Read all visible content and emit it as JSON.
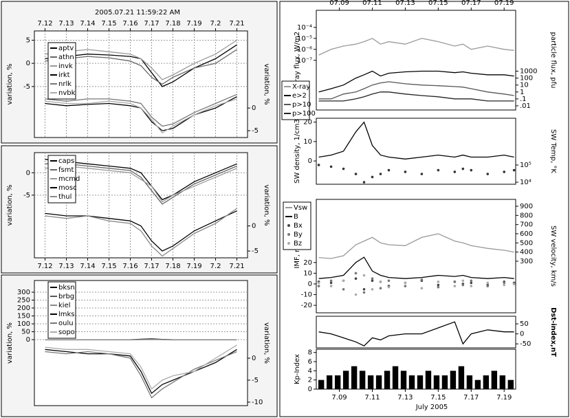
{
  "chart_data": [
    {
      "type": "line",
      "title": "2005.07.21 11:59:22 AM",
      "ylabel": "variation, %",
      "y2label": "variation, %",
      "grid": true,
      "legend": true,
      "xlim": [
        7.115,
        7.215
      ],
      "xticks": [
        7.12,
        7.13,
        7.14,
        7.15,
        7.16,
        7.17,
        7.18,
        7.19,
        7.2,
        7.21
      ],
      "ylim": [
        -16,
        7
      ],
      "yticks": [
        5,
        0,
        -5
      ],
      "y2lim": [
        -6.5,
        17
      ],
      "y2ticks": [
        0,
        -5
      ],
      "x": [
        7.12,
        7.13,
        7.14,
        7.15,
        7.16,
        7.165,
        7.17,
        7.175,
        7.18,
        7.19,
        7.2,
        7.21
      ],
      "series": [
        {
          "name": "aptv",
          "color": "#000",
          "values": [
            1,
            1.5,
            2,
            1.8,
            1.5,
            1,
            -2,
            -5,
            -4,
            -1,
            1,
            4
          ]
        },
        {
          "name": "athn",
          "color": "#666",
          "values": [
            0.5,
            1,
            1.5,
            1.2,
            0.5,
            -0.5,
            -3,
            -4.5,
            -3,
            -1,
            0,
            3
          ]
        },
        {
          "name": "invk",
          "color": "#999",
          "values": [
            2,
            2.5,
            3,
            2.5,
            2,
            1,
            -1,
            -3.5,
            -2.5,
            0,
            2,
            5
          ]
        },
        {
          "name": "irkt",
          "color": "#000",
          "axis": "y2",
          "values": [
            1,
            0.5,
            0.8,
            1,
            0.5,
            0,
            -3,
            -5,
            -4.5,
            -1.5,
            0,
            2.5
          ]
        },
        {
          "name": "nrlk",
          "color": "#777",
          "axis": "y2",
          "values": [
            2,
            1.5,
            2,
            2,
            1.5,
            1,
            -2,
            -4,
            -3.5,
            -1,
            1,
            3
          ]
        },
        {
          "name": "nvbk",
          "color": "#aaa",
          "axis": "y2",
          "values": [
            1.5,
            1,
            1,
            1.5,
            1,
            0,
            -2.5,
            -5.5,
            -4,
            -1.5,
            0.5,
            2
          ]
        }
      ]
    },
    {
      "type": "line",
      "ylabel": "variation, %",
      "y2label": "variation, %",
      "grid": true,
      "legend": true,
      "xlim": [
        7.115,
        7.215
      ],
      "xticks": [
        7.12,
        7.13,
        7.14,
        7.15,
        7.16,
        7.17,
        7.18,
        7.19,
        7.2,
        7.21
      ],
      "ylim": [
        -19,
        4.5
      ],
      "yticks": [
        0,
        -5
      ],
      "y2lim": [
        -6.35,
        14.6
      ],
      "y2ticks": [
        0,
        -5
      ],
      "x": [
        7.12,
        7.13,
        7.14,
        7.15,
        7.16,
        7.165,
        7.17,
        7.175,
        7.18,
        7.19,
        7.2,
        7.21
      ],
      "series": [
        {
          "name": "caps",
          "color": "#000",
          "values": [
            3,
            2.5,
            2,
            1.5,
            1,
            0,
            -3,
            -6,
            -5,
            -2,
            0,
            2
          ]
        },
        {
          "name": "fsmt",
          "color": "#666",
          "values": [
            2,
            2,
            1.5,
            1,
            0.5,
            -1,
            -4,
            -7,
            -5.5,
            -2.5,
            -0.5,
            1.5
          ]
        },
        {
          "name": "mcmd",
          "color": "#999",
          "values": [
            1,
            1.5,
            1,
            0.5,
            0,
            -1.5,
            -3,
            -6.5,
            -5,
            -3,
            -1,
            1
          ]
        },
        {
          "name": "mosc",
          "color": "#000",
          "axis": "y2",
          "values": [
            2.5,
            2,
            2,
            1.5,
            1,
            0,
            -3,
            -5,
            -4,
            -1,
            1,
            3
          ]
        },
        {
          "name": "thul",
          "color": "#888",
          "axis": "y2",
          "values": [
            2,
            1.5,
            2,
            1,
            0.5,
            -1,
            -4,
            -6,
            -4.5,
            -1.5,
            0.5,
            3.5
          ]
        }
      ]
    },
    {
      "type": "line",
      "ylabel": "variation, %",
      "y2label": "variation, %",
      "grid": true,
      "legend": true,
      "xlim": [
        7.115,
        7.215
      ],
      "ylim": [
        -417,
        374
      ],
      "yticks": [
        300,
        250,
        200,
        150,
        100,
        50,
        0
      ],
      "y2lim": [
        -10.8,
        17.7
      ],
      "y2ticks": [
        0,
        -5,
        -10
      ],
      "x": [
        7.12,
        7.13,
        7.14,
        7.15,
        7.16,
        7.165,
        7.17,
        7.175,
        7.18,
        7.19,
        7.2,
        7.21
      ],
      "series": [
        {
          "name": "bksn",
          "color": "#000",
          "values": [
            0,
            0,
            0,
            0,
            0,
            3,
            5,
            2,
            0,
            0,
            0,
            0
          ]
        },
        {
          "name": "brbg",
          "color": "#555",
          "values": [
            0,
            0,
            0,
            0,
            0,
            1,
            2,
            1,
            0,
            0,
            0,
            0
          ]
        },
        {
          "name": "kiel",
          "color": "#888",
          "values": [
            0,
            0,
            0,
            0,
            0,
            0,
            1,
            0,
            0,
            0,
            0,
            0
          ]
        },
        {
          "name": "lmks",
          "color": "#000",
          "axis": "y2",
          "values": [
            2,
            1.5,
            1,
            1,
            0.5,
            -3,
            -8,
            -6,
            -5,
            -3,
            -1,
            2
          ]
        },
        {
          "name": "oulu",
          "color": "#777",
          "axis": "y2",
          "values": [
            1.5,
            1,
            1.5,
            1,
            0,
            -4,
            -9,
            -7,
            -5.5,
            -2.5,
            -0.5,
            1.5
          ]
        },
        {
          "name": "sopo",
          "color": "#aaa",
          "axis": "y2",
          "values": [
            2.5,
            2,
            2,
            1.5,
            1,
            -2,
            -7,
            -5,
            -4,
            -3,
            0,
            3
          ]
        }
      ]
    },
    {
      "type": "line",
      "ylabel": "X-ray flux, W/m2",
      "y2label": "particle flux, pfu",
      "legend": true,
      "xlim": [
        7.6,
        19.7
      ],
      "xticks": [
        {
          "value": 9,
          "label": "07.09"
        },
        {
          "value": 11,
          "label": "07.11"
        },
        {
          "value": 13,
          "label": "07.13"
        },
        {
          "value": 15,
          "label": "07.15"
        },
        {
          "value": 17,
          "label": "07.17"
        },
        {
          "value": 19,
          "label": "07.19"
        }
      ],
      "ylog": true,
      "ylim": [
        3e-12,
        0.0036
      ],
      "yticks": [
        {
          "value": 0.0001,
          "label": "10⁻⁴"
        },
        {
          "value": 1e-05,
          "label": "10⁻⁵"
        },
        {
          "value": 1e-06,
          "label": "10⁻⁶"
        },
        {
          "value": 1e-07,
          "label": "10⁻⁷"
        }
      ],
      "y2log": true,
      "y2lim": [
        0.0025,
        600000000000
      ],
      "y2ticks": [
        1000,
        100,
        10,
        1,
        {
          "value": 0.1,
          "label": ".1"
        },
        {
          "value": 0.01,
          "label": ".01"
        }
      ],
      "x": [
        7.75,
        8.5,
        9.25,
        10,
        10.5,
        11,
        11.5,
        12,
        13,
        14,
        15,
        16,
        16.5,
        17,
        18,
        19,
        19.6
      ],
      "series": [
        {
          "name": "X-ray",
          "color": "#999",
          "values": [
            3e-07,
            1e-06,
            2e-06,
            3e-06,
            5e-06,
            1e-05,
            3e-06,
            5e-06,
            3e-06,
            1e-05,
            5e-06,
            2e-06,
            3e-06,
            1e-06,
            2e-06,
            1e-06,
            8e-07
          ]
        },
        {
          "name": "e>2",
          "color": "#000",
          "axis": "y2",
          "values": [
            1,
            3,
            10,
            100,
            300,
            1000,
            200,
            500,
            800,
            1000,
            1000,
            600,
            800,
            500,
            300,
            300,
            200
          ]
        },
        {
          "name": "p>10",
          "color": "#555",
          "axis": "y2",
          "values": [
            0.1,
            0.1,
            0.5,
            1,
            3,
            10,
            20,
            30,
            15,
            10,
            8,
            6,
            5,
            3,
            1,
            0.5,
            0.3
          ]
        },
        {
          "name": "p>100",
          "color": "#222",
          "axis": "y2",
          "values": [
            0.05,
            0.05,
            0.05,
            0.1,
            0.2,
            0.5,
            1,
            1,
            0.5,
            0.3,
            0.2,
            0.1,
            0.1,
            0.1,
            0.05,
            0.05,
            0.05
          ]
        }
      ]
    },
    {
      "type": "line",
      "ylabel": "SW density, 1/cm3",
      "y2label": "SW Temp, °K",
      "xlim": [
        7.6,
        19.7
      ],
      "ylim": [
        -12,
        22
      ],
      "yticks": [
        20,
        10,
        0
      ],
      "y2log": true,
      "y2lim": [
        7600,
        52000000
      ],
      "y2ticks": [
        {
          "value": 100000,
          "label": "10⁵"
        },
        {
          "value": 10000,
          "label": "10⁴"
        }
      ],
      "x": [
        7.75,
        8.5,
        9.25,
        10,
        10.5,
        11,
        11.5,
        12,
        13,
        14,
        15,
        16,
        16.5,
        17,
        18,
        19,
        19.6
      ],
      "series": [
        {
          "name": "density",
          "color": "#000",
          "values": [
            2,
            3,
            5,
            15,
            20,
            8,
            3,
            2,
            1,
            2,
            3,
            2,
            3,
            2,
            2,
            3,
            2
          ]
        },
        {
          "name": "temperature",
          "color": "#333",
          "axis": "y2",
          "marker": true,
          "values": [
            100000,
            80000,
            60000,
            30000,
            10000,
            20000,
            30000,
            50000,
            40000,
            30000,
            50000,
            40000,
            60000,
            50000,
            30000,
            40000,
            50000
          ]
        }
      ]
    },
    {
      "type": "line",
      "ylabel": "IMF, nT",
      "y2label": "SW velocity, km/s",
      "legend": true,
      "xlim": [
        7.6,
        19.7
      ],
      "ylim": [
        -27,
        79
      ],
      "yticks": [
        20,
        10,
        0,
        -10,
        -20
      ],
      "y2lim": [
        -263,
        975
      ],
      "y2ticks": [
        900,
        800,
        700,
        600,
        500,
        400,
        300
      ],
      "x": [
        7.75,
        8.5,
        9.25,
        10,
        10.5,
        11,
        11.5,
        12,
        13,
        14,
        15,
        16,
        16.5,
        17,
        18,
        19,
        19.6
      ],
      "series": [
        {
          "name": "Vsw",
          "color": "#999",
          "axis": "y2",
          "values": [
            340,
            330,
            360,
            480,
            520,
            560,
            500,
            480,
            470,
            560,
            600,
            520,
            500,
            470,
            440,
            420,
            400
          ]
        },
        {
          "name": "B",
          "color": "#000",
          "values": [
            5,
            6,
            8,
            20,
            25,
            12,
            8,
            6,
            5,
            6,
            8,
            7,
            8,
            6,
            5,
            6,
            5
          ]
        },
        {
          "name": "Bx",
          "color": "#444",
          "marker": true,
          "values": [
            2,
            1,
            3,
            5,
            -5,
            3,
            2,
            -2,
            1,
            3,
            -1,
            2,
            0,
            1,
            -1,
            2,
            1
          ]
        },
        {
          "name": "By",
          "color": "#777",
          "marker": true,
          "values": [
            -2,
            3,
            -5,
            10,
            -8,
            5,
            -4,
            3,
            -2,
            4,
            -3,
            2,
            -1,
            3,
            -2,
            1,
            0
          ]
        },
        {
          "name": "Bz",
          "color": "#aaa",
          "marker": true,
          "values": [
            1,
            -2,
            3,
            -10,
            8,
            -5,
            2,
            -3,
            1,
            -4,
            2,
            -2,
            3,
            -2,
            1,
            -1,
            0
          ]
        }
      ]
    },
    {
      "type": "line",
      "ylabel": "Dst-index,nT",
      "yaxis_side": "right",
      "xlim": [
        7.6,
        19.7
      ],
      "ylim": [
        -70,
        88
      ],
      "yticks": [
        50,
        0,
        -50
      ],
      "x": [
        7.75,
        8.5,
        9.25,
        10,
        10.5,
        11,
        11.5,
        12,
        13,
        14,
        15,
        16,
        16.5,
        17,
        18,
        19,
        19.6
      ],
      "series": [
        {
          "name": "Dst",
          "color": "#000",
          "values": [
            10,
            0,
            -20,
            -40,
            -60,
            -20,
            -30,
            -10,
            0,
            0,
            30,
            60,
            -50,
            0,
            20,
            10,
            10
          ]
        }
      ]
    },
    {
      "type": "bar",
      "ylabel": "Kp-Index",
      "xlabel": "July 2005",
      "color": "#000",
      "xlim": [
        7.6,
        19.7
      ],
      "xticks": [
        {
          "value": 9,
          "label": "7.09"
        },
        {
          "value": 11,
          "label": "7.11"
        },
        {
          "value": 13,
          "label": "7.13"
        },
        {
          "value": 15,
          "label": "7.15"
        },
        {
          "value": 17,
          "label": "7.17"
        },
        {
          "value": 19,
          "label": "7.19"
        }
      ],
      "ylim": [
        0,
        8.7
      ],
      "yticks": [
        8,
        6,
        4,
        2,
        0
      ],
      "x": [
        7.9,
        8.4,
        8.9,
        9.4,
        9.9,
        10.4,
        10.9,
        11.4,
        11.9,
        12.4,
        12.9,
        13.4,
        13.9,
        14.4,
        14.9,
        15.4,
        15.9,
        16.4,
        16.9,
        17.4,
        17.9,
        18.4,
        18.9,
        19.4
      ],
      "values": [
        2,
        3,
        3,
        4,
        5,
        4,
        3,
        3,
        4,
        5,
        4,
        3,
        3,
        4,
        3,
        3,
        4,
        5,
        3,
        2,
        3,
        4,
        3,
        2
      ]
    }
  ]
}
